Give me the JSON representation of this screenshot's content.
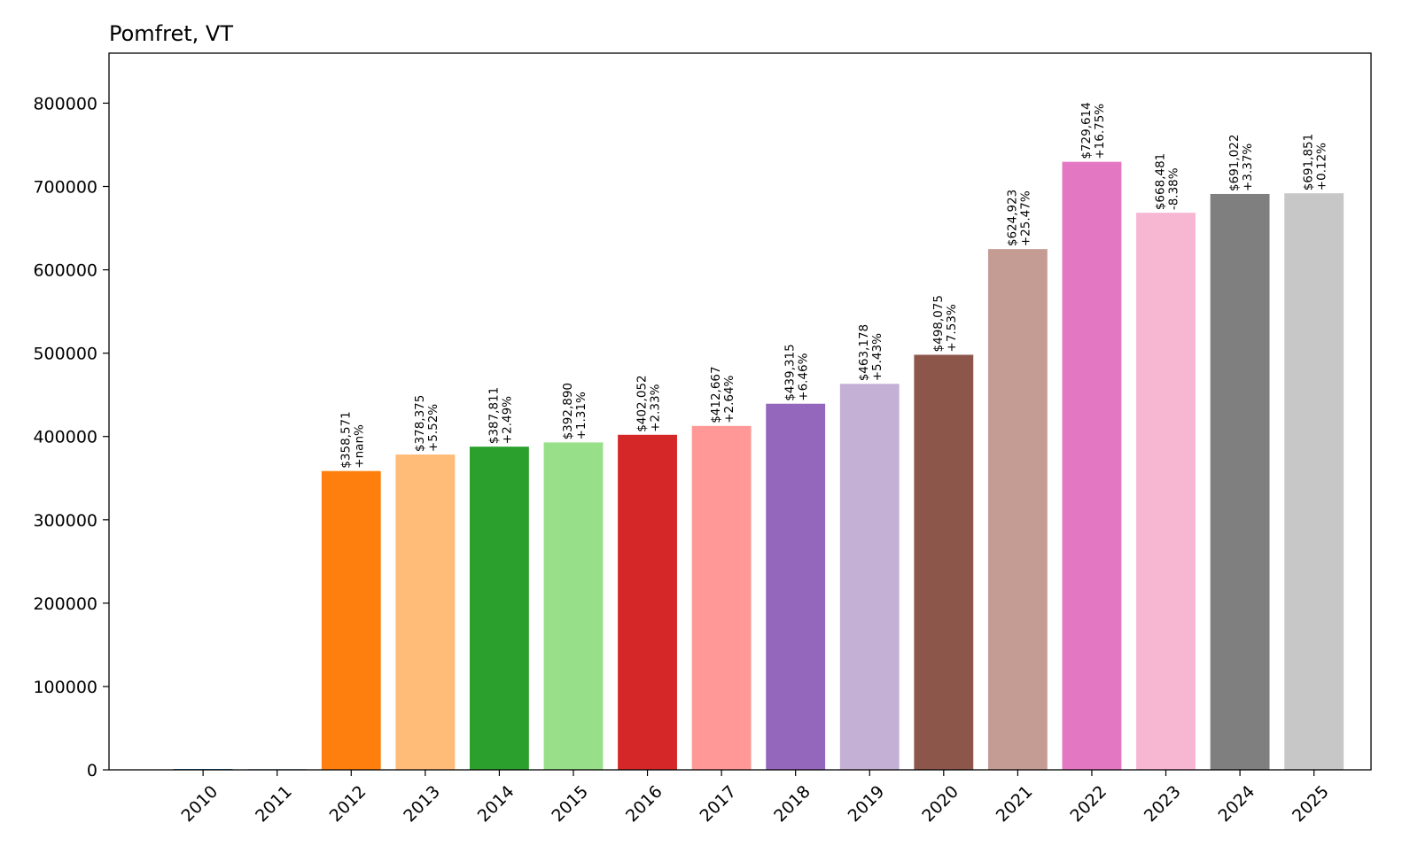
{
  "chart_data": {
    "type": "bar",
    "title": "Pomfret, VT",
    "xlabel": "",
    "ylabel": "",
    "ylim": [
      0,
      860000
    ],
    "yticks": [
      0,
      100000,
      200000,
      300000,
      400000,
      500000,
      600000,
      700000,
      800000
    ],
    "ytick_labels": [
      "0",
      "100000",
      "200000",
      "300000",
      "400000",
      "500000",
      "600000",
      "700000",
      "800000"
    ],
    "grid": false,
    "legend": "none",
    "categories": [
      "2010",
      "2011",
      "2012",
      "2013",
      "2014",
      "2015",
      "2016",
      "2017",
      "2018",
      "2019",
      "2020",
      "2021",
      "2022",
      "2023",
      "2024",
      "2025"
    ],
    "values": [
      0,
      0,
      358571,
      378375,
      387811,
      392890,
      402052,
      412667,
      439315,
      463178,
      498075,
      624923,
      729614,
      668481,
      691022,
      691851
    ],
    "value_labels": [
      "",
      "",
      "$358,571",
      "$378,375",
      "$387,811",
      "$392,890",
      "$402,052",
      "$412,667",
      "$439,315",
      "$463,178",
      "$498,075",
      "$624,923",
      "$729,614",
      "$668,481",
      "$691,022",
      "$691,851"
    ],
    "change_labels": [
      "",
      "",
      "+nan%",
      "+5.52%",
      "+2.49%",
      "+1.31%",
      "+2.33%",
      "+2.64%",
      "+6.46%",
      "+5.43%",
      "+7.53%",
      "+25.47%",
      "+16.75%",
      "-8.38%",
      "+3.37%",
      "+0.12%"
    ],
    "colors": [
      "#1f77b4",
      "#aec7e8",
      "#ff7f0e",
      "#ffbb78",
      "#2ca02c",
      "#98df8a",
      "#d62728",
      "#ff9896",
      "#9467bd",
      "#c5b0d5",
      "#8c564b",
      "#c49c94",
      "#e377c2",
      "#f7b6d2",
      "#7f7f7f",
      "#c7c7c7"
    ]
  }
}
